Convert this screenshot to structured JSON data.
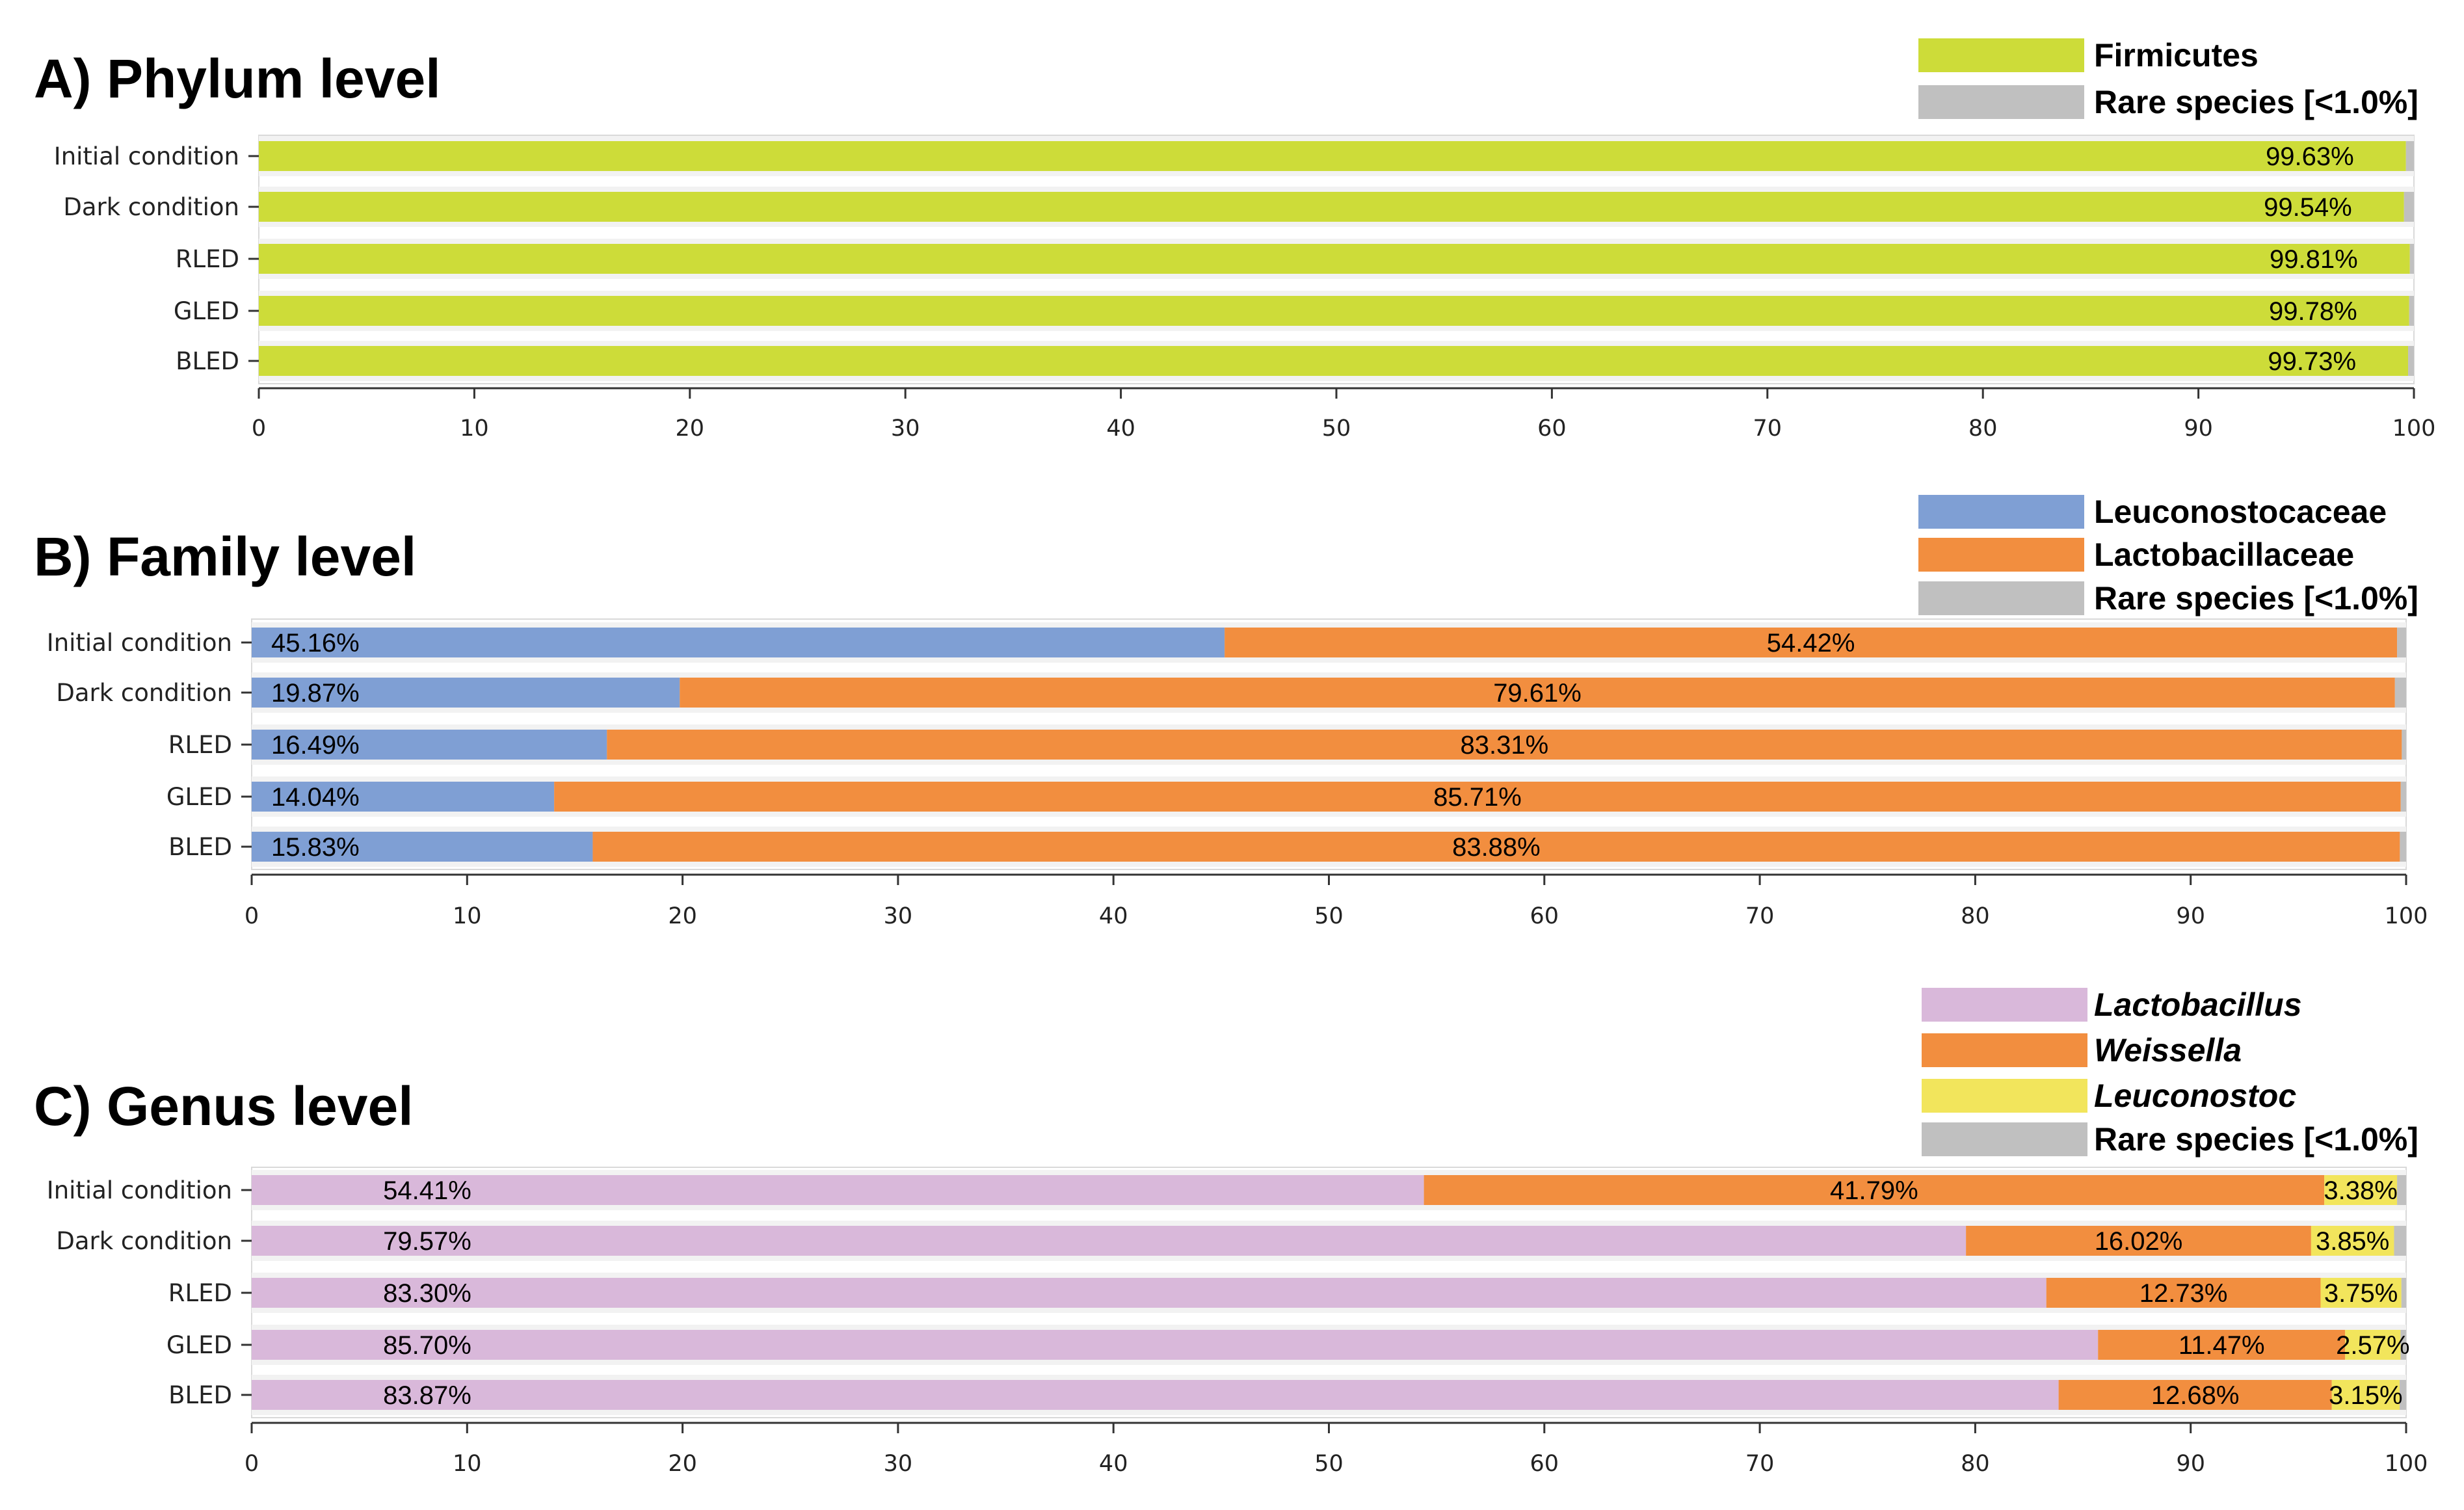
{
  "chart_data": [
    {
      "type": "bar",
      "orientation": "horizontal",
      "stacked": true,
      "title": "A) Phylum level",
      "categories": [
        "Initial condition",
        "Dark condition",
        "RLED",
        "GLED",
        "BLED"
      ],
      "series": [
        {
          "name": "Firmicutes",
          "italic": false,
          "color": "#cddc39",
          "values": [
            99.63,
            99.54,
            99.81,
            99.78,
            99.73
          ],
          "labels": [
            "99.63%",
            "99.54%",
            "99.81%",
            "99.78%",
            "99.73%"
          ]
        },
        {
          "name": "Rare species [<1.0%]",
          "italic": false,
          "color": "#c0c0c0",
          "values": [
            0.37,
            0.46,
            0.19,
            0.22,
            0.27
          ],
          "labels": []
        }
      ],
      "xlim": [
        0,
        100
      ],
      "xticks": [
        "0",
        "10",
        "20",
        "30",
        "40",
        "50",
        "60",
        "70",
        "80",
        "90",
        "100"
      ],
      "legend_position": "top-right"
    },
    {
      "type": "bar",
      "orientation": "horizontal",
      "stacked": true,
      "title": "B) Family level",
      "categories": [
        "Initial condition",
        "Dark condition",
        "RLED",
        "GLED",
        "BLED"
      ],
      "series": [
        {
          "name": "Leuconostocaceae",
          "italic": false,
          "color": "#7f9fd4",
          "values": [
            45.16,
            19.87,
            16.49,
            14.04,
            15.83
          ],
          "labels": [
            "45.16%",
            "19.87%",
            "16.49%",
            "14.04%",
            "15.83%"
          ]
        },
        {
          "name": "Lactobacillaceae",
          "italic": false,
          "color": "#f28e3f",
          "values": [
            54.42,
            79.61,
            83.31,
            85.71,
            83.88
          ],
          "labels": [
            "54.42%",
            "79.61%",
            "83.31%",
            "85.71%",
            "83.88%"
          ]
        },
        {
          "name": "Rare species [<1.0%]",
          "italic": false,
          "color": "#c0c0c0",
          "values": [
            0.42,
            0.52,
            0.2,
            0.25,
            0.29
          ],
          "labels": []
        }
      ],
      "xlim": [
        0,
        100
      ],
      "xticks": [
        "0",
        "10",
        "20",
        "30",
        "40",
        "50",
        "60",
        "70",
        "80",
        "90",
        "100"
      ],
      "legend_position": "top-right"
    },
    {
      "type": "bar",
      "orientation": "horizontal",
      "stacked": true,
      "title": "C) Genus level",
      "categories": [
        "Initial condition",
        "Dark condition",
        "RLED",
        "GLED",
        "BLED"
      ],
      "series": [
        {
          "name": "Lactobacillus",
          "italic": true,
          "color": "#d9b8da",
          "values": [
            54.41,
            79.57,
            83.3,
            85.7,
            83.87
          ],
          "labels": [
            "54.41%",
            "79.57%",
            "83.30%",
            "85.70%",
            "83.87%"
          ]
        },
        {
          "name": "Weissella",
          "italic": true,
          "color": "#f28e3f",
          "values": [
            41.79,
            16.02,
            12.73,
            11.47,
            12.68
          ],
          "labels": [
            "41.79%",
            "16.02%",
            "12.73%",
            "11.47%",
            "12.68%"
          ]
        },
        {
          "name": "Leuconostoc",
          "italic": true,
          "color": "#f2e55c",
          "values": [
            3.38,
            3.85,
            3.75,
            2.57,
            3.15
          ],
          "labels": [
            "3.38%",
            "3.85%",
            "3.75%",
            "2.57%",
            "3.15%"
          ]
        },
        {
          "name": "Rare species [<1.0%]",
          "italic": false,
          "color": "#c0c0c0",
          "values": [
            0.42,
            0.56,
            0.22,
            0.26,
            0.3
          ],
          "labels": []
        }
      ],
      "xlim": [
        0,
        100
      ],
      "xticks": [
        "0",
        "10",
        "20",
        "30",
        "40",
        "50",
        "60",
        "70",
        "80",
        "90",
        "100"
      ],
      "legend_position": "top-right"
    }
  ]
}
